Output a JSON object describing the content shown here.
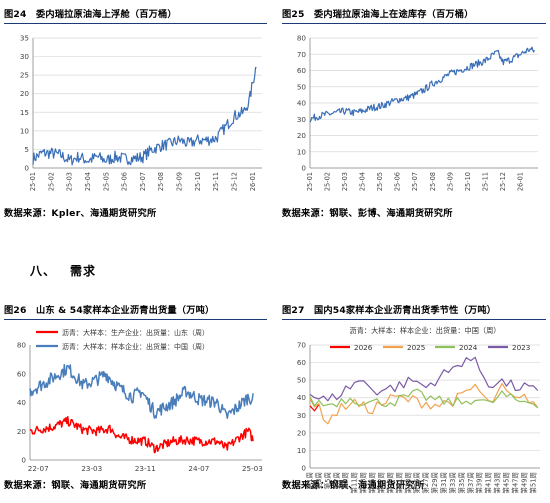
{
  "section": {
    "number": "八、",
    "title": "需求"
  },
  "sources": [
    "数据来源：Kpler、海通期货研究所",
    "数据来源：钢联、彭博、海通期货研究所",
    "数据来源：钢联、海通期货研究所",
    "数据来源：钢联、海通期货研究所"
  ],
  "chart_data": [
    {
      "figure_title": "图24　委内瑞拉原油海上浮舱（百万桶）",
      "type": "line",
      "x_ticks": [
        "25-01",
        "25-02",
        "25-03",
        "25-04",
        "25-05",
        "25-06",
        "25-07",
        "25-08",
        "25-09",
        "25-10",
        "25-11",
        "25-12",
        "26-01"
      ],
      "ylim": [
        0,
        35
      ],
      "y_ticks": [
        0,
        5,
        10,
        15,
        20,
        25,
        30,
        35
      ],
      "grid": "horizontal",
      "series": [
        {
          "color": "#3a6fb7",
          "anchors": [
            [
              0,
              2.5
            ],
            [
              0.5,
              4
            ],
            [
              1,
              4
            ],
            [
              1.5,
              3.5
            ],
            [
              2,
              2
            ],
            [
              2.5,
              3
            ],
            [
              3,
              2
            ],
            [
              3.5,
              3
            ],
            [
              4,
              2
            ],
            [
              4.5,
              3
            ],
            [
              5,
              2.5
            ],
            [
              5.5,
              2.5
            ],
            [
              6,
              3
            ],
            [
              6.5,
              5
            ],
            [
              7,
              6
            ],
            [
              7.5,
              6.5
            ],
            [
              8,
              7.5
            ],
            [
              8.5,
              6.5
            ],
            [
              9,
              7.5
            ],
            [
              9.5,
              7.5
            ],
            [
              10,
              8
            ],
            [
              10.5,
              11
            ],
            [
              11,
              14
            ],
            [
              11.5,
              15
            ],
            [
              11.8,
              18
            ],
            [
              12,
              23
            ],
            [
              12.2,
              28
            ]
          ]
        }
      ]
    },
    {
      "figure_title": "图25　委内瑞拉原油海上在途库存（百万桶）",
      "type": "line",
      "x_ticks": [
        "25-01",
        "25-02",
        "25-03",
        "25-04",
        "25-05",
        "25-06",
        "25-07",
        "25-08",
        "25-09",
        "25-10",
        "25-11",
        "25-12",
        "26-01"
      ],
      "ylim": [
        0,
        80
      ],
      "y_ticks": [
        0,
        10,
        20,
        30,
        40,
        50,
        60,
        70,
        80
      ],
      "grid": "horizontal",
      "series": [
        {
          "color": "#3a6fb7",
          "anchors": [
            [
              0,
              30
            ],
            [
              0.5,
              32
            ],
            [
              1,
              33
            ],
            [
              1.5,
              34
            ],
            [
              2,
              35
            ],
            [
              2.5,
              34
            ],
            [
              3,
              35
            ],
            [
              3.5,
              37
            ],
            [
              4,
              38
            ],
            [
              4.5,
              40
            ],
            [
              5,
              42
            ],
            [
              5.5,
              43
            ],
            [
              6,
              45
            ],
            [
              6.5,
              48
            ],
            [
              7,
              52
            ],
            [
              7.5,
              55
            ],
            [
              8,
              58
            ],
            [
              8.5,
              60
            ],
            [
              9,
              62
            ],
            [
              9.5,
              64
            ],
            [
              10,
              66
            ],
            [
              10.5,
              70
            ],
            [
              10.7,
              71
            ],
            [
              11,
              65
            ],
            [
              11.5,
              67
            ],
            [
              12,
              70
            ],
            [
              12.5,
              73
            ],
            [
              12.8,
              72
            ]
          ]
        }
      ]
    },
    {
      "figure_title": "图26　山东 & 54家样本企业沥青出货量（万吨）",
      "type": "line",
      "x_ticks": [
        "22-07",
        "23-03",
        "23-11",
        "24-07",
        "25-03"
      ],
      "ylim": [
        0,
        80
      ],
      "y_ticks": [
        0,
        20,
        40,
        60,
        80
      ],
      "grid": "none",
      "legend": "top-left",
      "series": [
        {
          "name": "沥青：大样本：生产企业：出货量：山东（周）",
          "color": "#ff0000",
          "anchors": [
            [
              0,
              20
            ],
            [
              0.5,
              23
            ],
            [
              0.85,
              27
            ],
            [
              1.2,
              21
            ],
            [
              1.5,
              20
            ],
            [
              1.8,
              22
            ],
            [
              2,
              16
            ],
            [
              2.3,
              14
            ],
            [
              2.6,
              13
            ],
            [
              2.8,
              8
            ],
            [
              3.2,
              13
            ],
            [
              3.5,
              14
            ],
            [
              3.8,
              13
            ],
            [
              4.2,
              13
            ],
            [
              4.4,
              8
            ],
            [
              4.7,
              16
            ],
            [
              4.9,
              20
            ],
            [
              5,
              14
            ]
          ]
        },
        {
          "name": "沥青：大样本：样本企业：出货量：中国（周）",
          "color": "#4a7ebb",
          "anchors": [
            [
              0,
              48
            ],
            [
              0.4,
              55
            ],
            [
              0.85,
              64
            ],
            [
              1.2,
              52
            ],
            [
              1.5,
              56
            ],
            [
              1.7,
              60
            ],
            [
              2,
              50
            ],
            [
              2.3,
              44
            ],
            [
              2.5,
              48
            ],
            [
              2.8,
              33
            ],
            [
              3.2,
              40
            ],
            [
              3.5,
              48
            ],
            [
              3.8,
              42
            ],
            [
              4.2,
              40
            ],
            [
              4.4,
              30
            ],
            [
              4.7,
              38
            ],
            [
              4.9,
              44
            ],
            [
              5,
              42
            ]
          ]
        }
      ]
    },
    {
      "figure_title": "图27　国内54家样本企业沥青出货季节性（万吨）",
      "type": "line",
      "subtitle": "沥青：大样本：样本企业：出货量：中国（周）",
      "x_ticks": [
        "第1周",
        "第3周",
        "第5周",
        "第7周",
        "第9周",
        "第11周",
        "第13周",
        "第15周",
        "第17周",
        "第19周",
        "第21周",
        "第23周",
        "第25周",
        "第27周",
        "第29周",
        "第31周",
        "第33周",
        "第35周",
        "第37周",
        "第39周",
        "第41周",
        "第43周",
        "第45周",
        "第47周",
        "第49周",
        "第51周"
      ],
      "ylim": [
        0,
        70
      ],
      "y_ticks": [
        0,
        10,
        20,
        30,
        40,
        50,
        60,
        70
      ],
      "grid": "horizontal",
      "legend": "top",
      "series": [
        {
          "name": "2026",
          "color": "#ff0000",
          "anchors": [
            [
              1,
              35
            ],
            [
              2,
              32
            ],
            [
              3,
              38
            ]
          ]
        },
        {
          "name": "2025",
          "color": "#f2a24f",
          "anchors": [
            [
              1,
              40
            ],
            [
              5,
              27
            ],
            [
              10,
              38
            ],
            [
              14,
              33
            ],
            [
              20,
              40
            ],
            [
              25,
              38
            ],
            [
              30,
              36
            ],
            [
              35,
              40
            ],
            [
              38,
              47
            ],
            [
              41,
              36
            ],
            [
              44,
              45
            ],
            [
              47,
              38
            ],
            [
              50,
              40
            ],
            [
              52,
              35
            ]
          ]
        },
        {
          "name": "2024",
          "color": "#8fc15a",
          "anchors": [
            [
              1,
              38
            ],
            [
              5,
              36
            ],
            [
              10,
              40
            ],
            [
              14,
              37
            ],
            [
              20,
              38
            ],
            [
              25,
              42
            ],
            [
              30,
              38
            ],
            [
              35,
              37
            ],
            [
              38,
              40
            ],
            [
              41,
              36
            ],
            [
              44,
              42
            ],
            [
              47,
              38
            ],
            [
              50,
              38
            ],
            [
              52,
              37
            ]
          ]
        },
        {
          "name": "2023",
          "color": "#7b5aa6",
          "anchors": [
            [
              1,
              42
            ],
            [
              5,
              38
            ],
            [
              8,
              43
            ],
            [
              12,
              50
            ],
            [
              16,
              44
            ],
            [
              20,
              46
            ],
            [
              24,
              50
            ],
            [
              27,
              46
            ],
            [
              30,
              52
            ],
            [
              33,
              56
            ],
            [
              36,
              63
            ],
            [
              38,
              60
            ],
            [
              41,
              48
            ],
            [
              44,
              49
            ],
            [
              47,
              46
            ],
            [
              50,
              46
            ],
            [
              52,
              42
            ]
          ]
        }
      ]
    }
  ]
}
